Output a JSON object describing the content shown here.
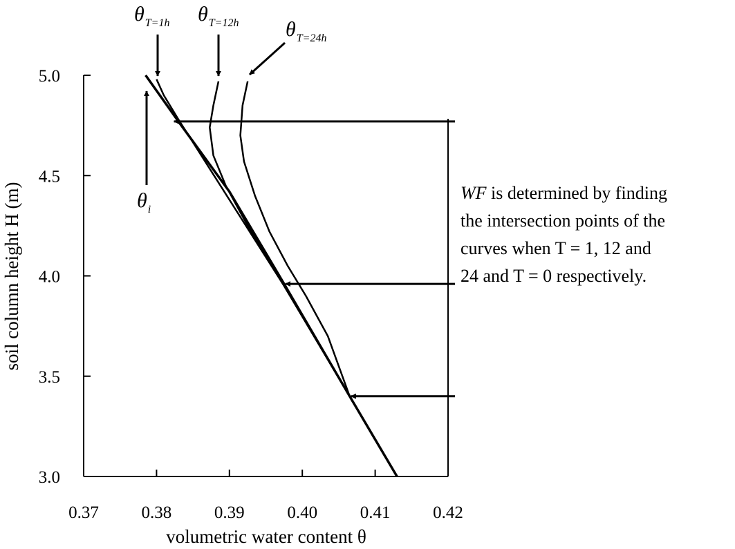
{
  "chart_data": {
    "type": "line",
    "xlabel": "volumetric water content θ",
    "ylabel": "soil column height H (m)",
    "xlim": [
      0.37,
      0.42
    ],
    "ylim": [
      3.0,
      5.0
    ],
    "x_ticks": [
      "0.37",
      "0.38",
      "0.39",
      "0.40",
      "0.41",
      "0.42"
    ],
    "y_ticks": [
      "3.0",
      "3.5",
      "4.0",
      "4.5",
      "5.0"
    ],
    "grid": false,
    "series": [
      {
        "name": "θi",
        "points": [
          [
            0.3785,
            5.0
          ],
          [
            0.383,
            4.77
          ],
          [
            0.39,
            4.42
          ],
          [
            0.3975,
            3.96
          ],
          [
            0.4065,
            3.4
          ],
          [
            0.413,
            3.0
          ]
        ]
      },
      {
        "name": "θT=1h",
        "points": [
          [
            0.38,
            4.98
          ],
          [
            0.381,
            4.9
          ],
          [
            0.383,
            4.78
          ],
          [
            0.3975,
            3.95
          ],
          [
            0.4065,
            3.4
          ],
          [
            0.413,
            3.0
          ]
        ]
      },
      {
        "name": "θT=12h",
        "points": [
          [
            0.3885,
            4.97
          ],
          [
            0.3878,
            4.85
          ],
          [
            0.3873,
            4.74
          ],
          [
            0.3878,
            4.6
          ],
          [
            0.3895,
            4.45
          ],
          [
            0.3925,
            4.25
          ],
          [
            0.395,
            4.1
          ],
          [
            0.3975,
            3.95
          ],
          [
            0.4065,
            3.4
          ],
          [
            0.413,
            3.0
          ]
        ]
      },
      {
        "name": "θT=24h",
        "points": [
          [
            0.3925,
            4.97
          ],
          [
            0.3918,
            4.85
          ],
          [
            0.3915,
            4.7
          ],
          [
            0.392,
            4.57
          ],
          [
            0.3935,
            4.4
          ],
          [
            0.3955,
            4.22
          ],
          [
            0.398,
            4.05
          ],
          [
            0.4005,
            3.9
          ],
          [
            0.4035,
            3.7
          ],
          [
            0.4065,
            3.4
          ],
          [
            0.413,
            3.0
          ]
        ]
      }
    ],
    "annotations": {
      "theta_i": {
        "base": "θ",
        "sub": "i"
      },
      "theta_1h": {
        "base": "θ",
        "sub": "T=1h"
      },
      "theta_12h": {
        "base": "θ",
        "sub": "T=12h"
      },
      "theta_24h": {
        "base": "θ",
        "sub": "T=24h"
      }
    },
    "wf_arrow_heights": [
      4.77,
      3.96,
      3.4
    ],
    "note": {
      "line1_italic": "WF",
      "line1_rest": " is determined by finding",
      "line2": "the intersection points of the",
      "line3": "curves when T = 1, 12 and",
      "line4": "24 and T = 0 respectively."
    }
  }
}
